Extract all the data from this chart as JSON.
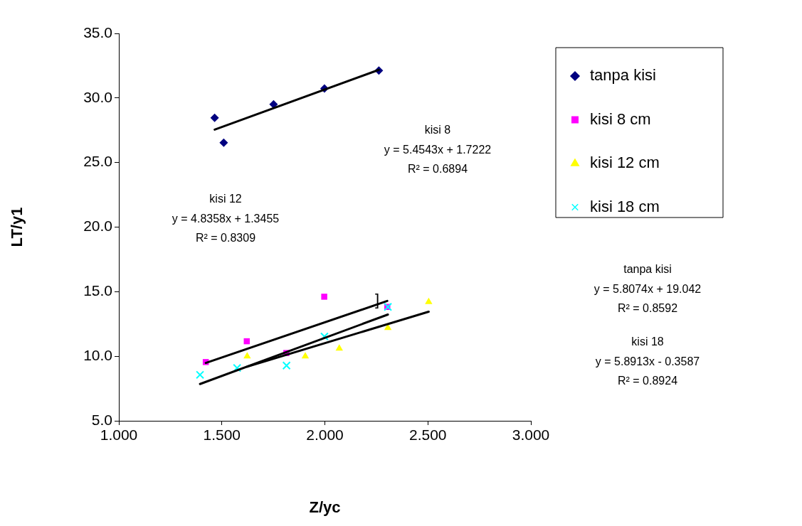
{
  "chart_data": {
    "type": "scatter",
    "xlabel": "Z/yc",
    "ylabel": "LT/y1",
    "xlim": [
      1,
      3
    ],
    "xticks": [
      {
        "value": 1,
        "label": "1.000"
      },
      {
        "value": 1.5,
        "label": "1.500"
      },
      {
        "value": 2,
        "label": "2.000"
      },
      {
        "value": 2.5,
        "label": "2.500"
      },
      {
        "value": 3,
        "label": "3.000"
      }
    ],
    "ylim": [
      5,
      35
    ],
    "yticks": [
      {
        "value": 5,
        "label": "5.0"
      },
      {
        "value": 10,
        "label": "10.0"
      },
      {
        "value": 15,
        "label": "15.0"
      },
      {
        "value": 20,
        "label": "20.0"
      },
      {
        "value": 25,
        "label": "25.0"
      },
      {
        "value": 30,
        "label": "30.0"
      },
      {
        "value": 35,
        "label": "35.0"
      }
    ],
    "grid": false,
    "legend": "right",
    "series": [
      {
        "name": "tanpa kisi",
        "color": "#000080",
        "marker": "diamond",
        "x": [
          1.465,
          1.509,
          1.751,
          1.998,
          2.262
        ],
        "values": [
          28.46,
          26.54,
          29.51,
          30.74,
          32.12
        ]
      },
      {
        "name": "kisi 8 cm",
        "color": "#ff00ff",
        "marker": "square",
        "x": [
          1.422,
          1.621,
          1.813,
          1.997,
          2.303
        ],
        "values": [
          9.55,
          11.16,
          10.25,
          14.61,
          13.82
        ]
      },
      {
        "name": "kisi 12 cm",
        "color": "#ffff00",
        "marker": "triangle",
        "x": [
          1.623,
          1.905,
          2.07,
          2.306,
          2.504
        ],
        "values": [
          10.0,
          10.0,
          10.6,
          12.2,
          14.2
        ]
      },
      {
        "name": "kisi 18 cm",
        "color": "#00ffff",
        "marker": "cross",
        "x": [
          1.394,
          1.574,
          1.814,
          1.998,
          2.306
        ],
        "values": [
          8.56,
          9.09,
          9.28,
          11.53,
          13.82
        ]
      },
      {
        "type": "line",
        "color": "#000000",
        "marker": "none",
        "x": [
          1.465,
          2.262
        ],
        "values": [
          27.55,
          32.18
        ]
      },
      {
        "type": "line",
        "color": "#000000",
        "marker": "none",
        "x": [
          1.422,
          2.303
        ],
        "values": [
          9.48,
          14.28
        ]
      },
      {
        "type": "line",
        "color": "#000000",
        "marker": "none",
        "x": [
          1.623,
          2.504
        ],
        "values": [
          9.19,
          13.45
        ]
      },
      {
        "type": "line",
        "color": "#000000",
        "marker": "none",
        "x": [
          1.394,
          2.306
        ],
        "values": [
          7.85,
          13.23
        ]
      }
    ],
    "annotations": [
      "kisi 8\ny = 5.4543x + 1.7222\nR² = 0.6894",
      "kisi 12\ny = 4.8358x + 1.3455\nR² = 0.8309",
      "tanpa kisi\ny = 5.8074x + 19.042\nR² = 0.8592",
      "kisi 18\ny = 5.8913x - 0.3587\nR² = 0.8924",
      {
        "text": "]",
        "x": 2.254,
        "y": 14.3
      }
    ]
  }
}
